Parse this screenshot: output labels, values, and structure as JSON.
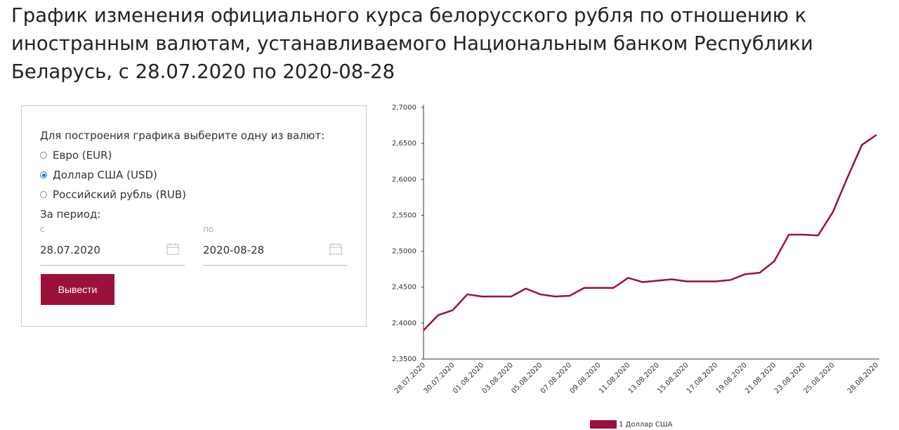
{
  "header": {
    "title": "График изменения официального курса белорусского рубля по отношению к иностранным валютам, устанавливаемого Национальным банком Республики Беларусь, с 28.07.2020 по 2020-08-28"
  },
  "form": {
    "prompt": "Для построения графика выберите одну из валют:",
    "options": [
      "Евро (EUR)",
      "Доллар США (USD)",
      "Российский рубль (RUB)"
    ],
    "selected": 1,
    "period_label": "За период:",
    "from_label": "с",
    "from_value": "28.07.2020",
    "to_label": "по",
    "to_value": "2020-08-28",
    "button": "Вывести"
  },
  "chart_data": {
    "type": "line",
    "x": [
      "28.07.2020",
      null,
      "30.07.2020",
      null,
      "01.08.2020",
      null,
      "03.08.2020",
      null,
      "05.08.2020",
      null,
      "07.08.2020",
      null,
      "09.08.2020",
      null,
      "11.08.2020",
      null,
      "13.08.2020",
      null,
      "15.08.2020",
      null,
      "17.08.2020",
      null,
      "19.08.2020",
      null,
      "21.08.2020",
      null,
      "23.08.2020",
      null,
      "25.08.2020",
      null,
      null,
      "28.08.2020"
    ],
    "series": [
      {
        "name": "1 Доллар США",
        "color": "#9c1139",
        "values": [
          2.39,
          2.411,
          2.418,
          2.44,
          2.437,
          2.437,
          2.437,
          2.448,
          2.44,
          2.437,
          2.438,
          2.449,
          2.449,
          2.449,
          2.463,
          2.457,
          2.459,
          2.461,
          2.458,
          2.458,
          2.458,
          2.46,
          2.468,
          2.47,
          2.486,
          2.523,
          2.523,
          2.522,
          2.554,
          2.602,
          2.648,
          2.662
        ]
      }
    ],
    "ylim": [
      2.35,
      2.7
    ],
    "yticks": [
      {
        "value": 2.35,
        "label": "2,3500"
      },
      {
        "value": 2.4,
        "label": "2,4000"
      },
      {
        "value": 2.45,
        "label": "2,4500"
      },
      {
        "value": 2.5,
        "label": "2,5000"
      },
      {
        "value": 2.55,
        "label": "2,5500"
      },
      {
        "value": 2.6,
        "label": "2,6000"
      },
      {
        "value": 2.65,
        "label": "2,6500"
      },
      {
        "value": 2.7,
        "label": "2,7000"
      }
    ],
    "legend": "bottom"
  }
}
